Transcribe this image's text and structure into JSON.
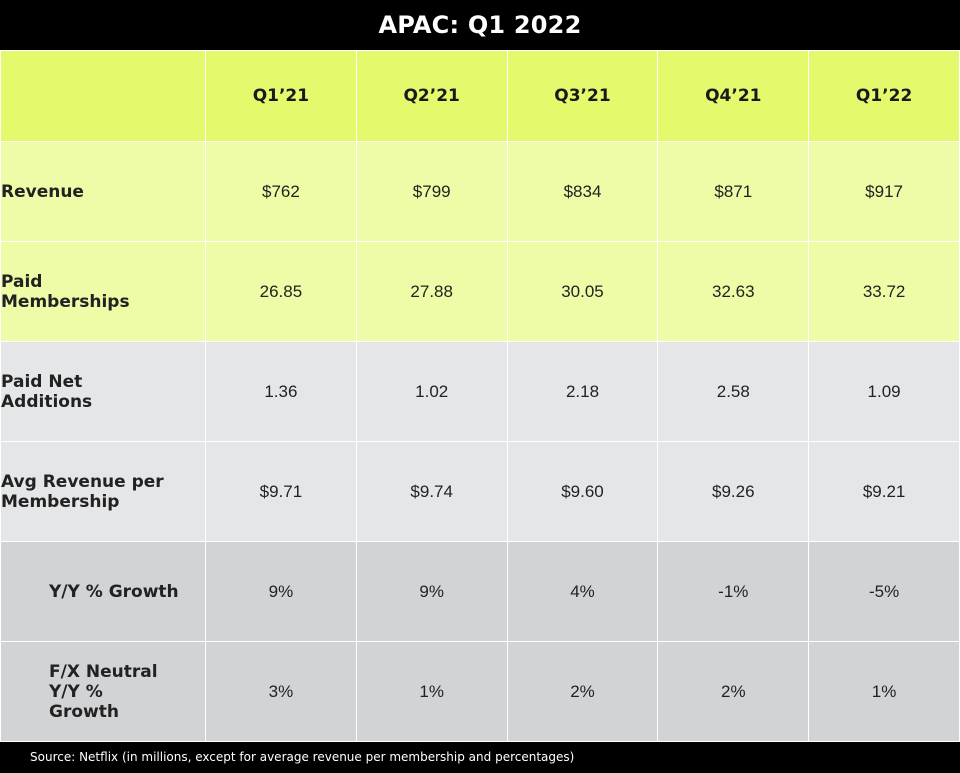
{
  "title": "APAC: Q1 2022",
  "source": "Source: Netflix (in millions, except for average revenue per membership and percentages)",
  "chart_data": {
    "type": "table",
    "title": "APAC: Q1 2022",
    "columns": [
      "Q1’21",
      "Q2’21",
      "Q3’21",
      "Q4’21",
      "Q1’22"
    ],
    "rows": [
      {
        "label": "Revenue",
        "values": [
          "$762",
          "$799",
          "$834",
          "$871",
          "$917"
        ]
      },
      {
        "label": "Paid Memberships",
        "values": [
          "26.85",
          "27.88",
          "30.05",
          "32.63",
          "33.72"
        ]
      },
      {
        "label": "Paid Net Additions",
        "values": [
          "1.36",
          "1.02",
          "2.18",
          "2.58",
          "1.09"
        ]
      },
      {
        "label": "Avg Revenue per Membership",
        "values": [
          "$9.71",
          "$9.74",
          "$9.60",
          "$9.26",
          "$9.21"
        ]
      },
      {
        "label": "Y/Y % Growth",
        "values": [
          "9%",
          "9%",
          "4%",
          "-1%",
          "-5%"
        ]
      },
      {
        "label": "F/X Neutral Y/Y % Growth",
        "values": [
          "3%",
          "1%",
          "2%",
          "2%",
          "1%"
        ]
      }
    ]
  },
  "colors": {
    "header": "#e4f96b",
    "lime_rows": "#eefca7",
    "grey_rows": "#e5e6e8",
    "dark_grey_rows": "#d2d3d5",
    "background": "#000000"
  }
}
